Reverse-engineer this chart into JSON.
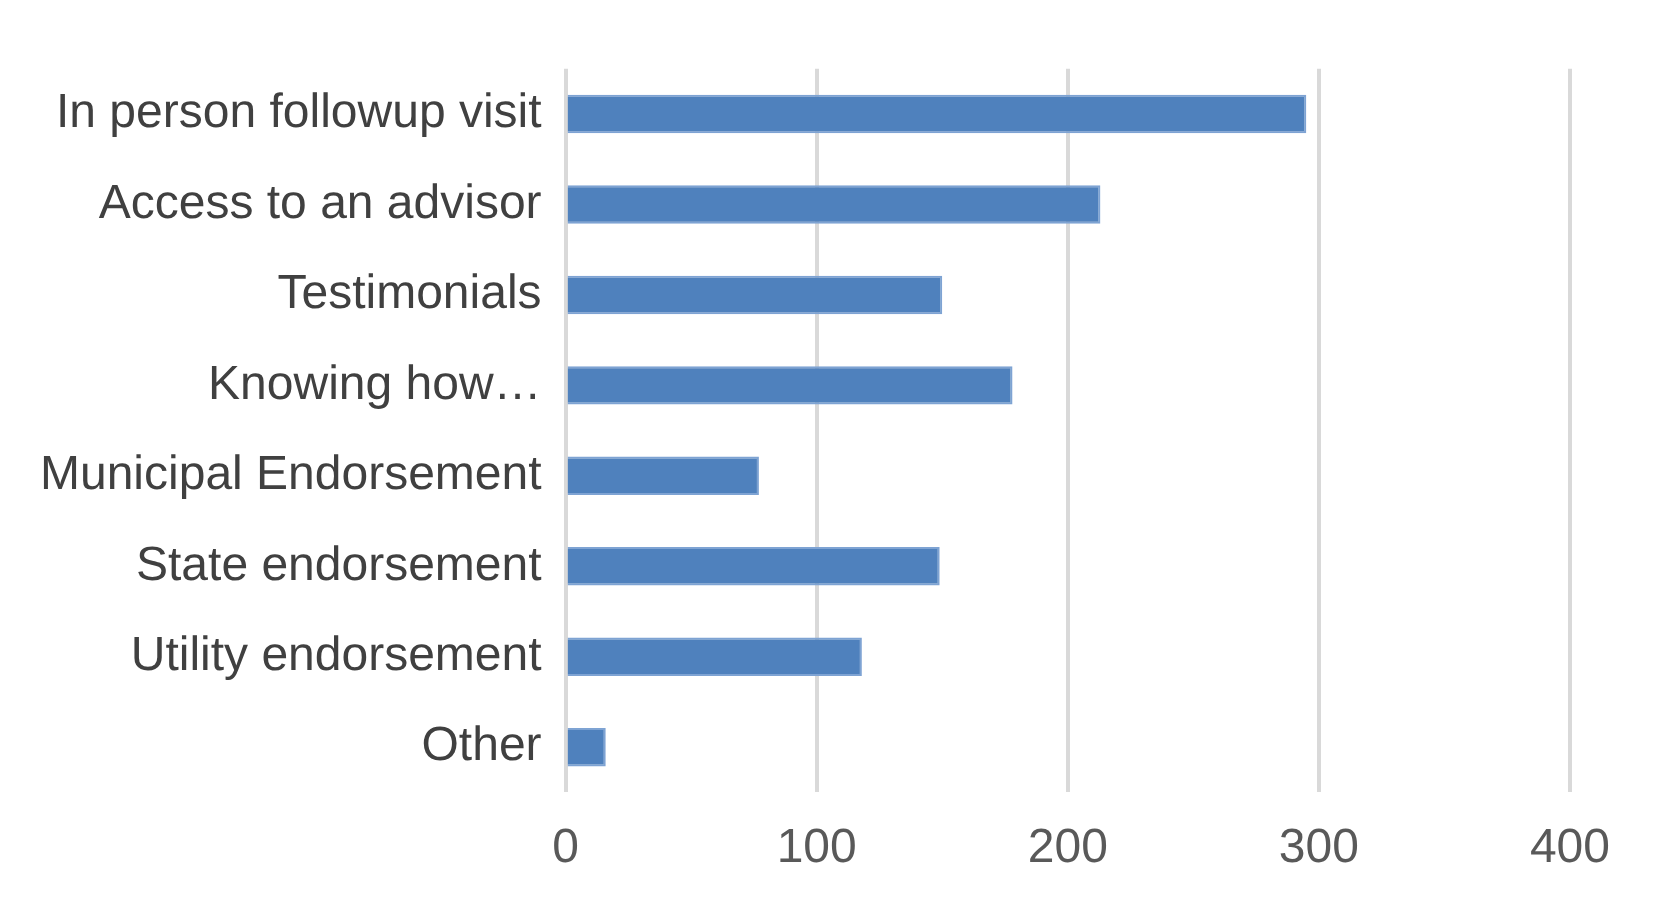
{
  "chart_data": {
    "type": "bar",
    "orientation": "horizontal",
    "categories": [
      "In person followup visit",
      "Access to an advisor",
      "Testimonials",
      "Knowing how…",
      "Municipal Endorsement",
      "State endorsement",
      "Utility endorsement",
      "Other"
    ],
    "values": [
      295,
      213,
      150,
      178,
      77,
      149,
      118,
      16
    ],
    "color": "#4f81bd",
    "xlim": [
      0,
      400
    ],
    "xticks": [
      0,
      100,
      200,
      300,
      400
    ],
    "grid": "x"
  }
}
